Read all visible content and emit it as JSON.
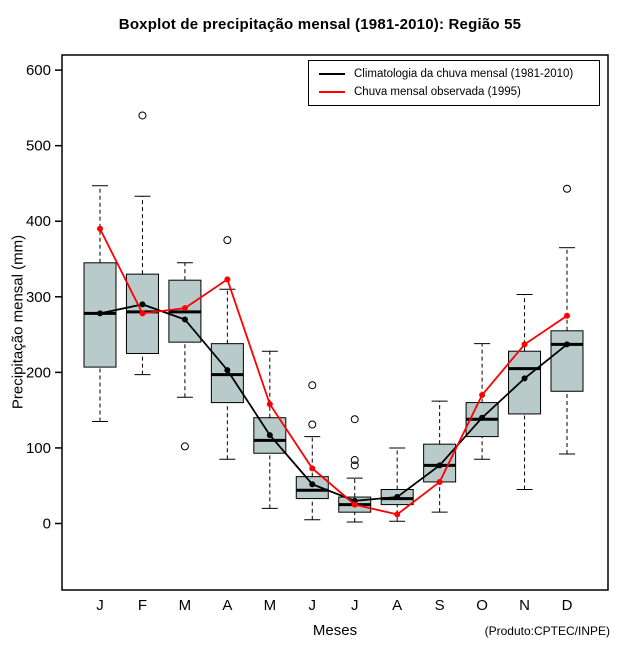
{
  "title": "Boxplot de precipitação mensal (1981-2010): Região 55",
  "chart_data": {
    "type": "boxplot",
    "categories": [
      "J",
      "F",
      "M",
      "A",
      "M",
      "J",
      "J",
      "A",
      "S",
      "O",
      "N",
      "D"
    ],
    "xlabel": "Meses",
    "ylabel": "Precipitação mensal (mm)",
    "footnote": "(Produto:CPTEC/INPE)",
    "ylim": [
      -88,
      620
    ],
    "yticks": [
      0,
      100,
      200,
      300,
      400,
      500,
      600
    ],
    "grid": false,
    "legend_position": "top-right",
    "box_fill": "#b8cbca",
    "boxes": [
      {
        "whislo": 135,
        "q1": 207,
        "med": 278,
        "q3": 345,
        "whishi": 447,
        "outliers": []
      },
      {
        "whislo": 197,
        "q1": 225,
        "med": 280,
        "q3": 330,
        "whishi": 433,
        "outliers": [
          540
        ]
      },
      {
        "whislo": 167,
        "q1": 240,
        "med": 280,
        "q3": 322,
        "whishi": 345,
        "outliers": [
          102
        ]
      },
      {
        "whislo": 85,
        "q1": 160,
        "med": 197,
        "q3": 238,
        "whishi": 310,
        "outliers": [
          375
        ]
      },
      {
        "whislo": 20,
        "q1": 93,
        "med": 110,
        "q3": 140,
        "whishi": 228,
        "outliers": []
      },
      {
        "whislo": 5,
        "q1": 33,
        "med": 44,
        "q3": 62,
        "whishi": 115,
        "outliers": [
          183,
          131
        ]
      },
      {
        "whislo": 2,
        "q1": 15,
        "med": 25,
        "q3": 35,
        "whishi": 60,
        "outliers": [
          138,
          84,
          77
        ]
      },
      {
        "whislo": 3,
        "q1": 25,
        "med": 33,
        "q3": 45,
        "whishi": 100,
        "outliers": []
      },
      {
        "whislo": 15,
        "q1": 55,
        "med": 77,
        "q3": 105,
        "whishi": 162,
        "outliers": []
      },
      {
        "whislo": 85,
        "q1": 115,
        "med": 138,
        "q3": 160,
        "whishi": 238,
        "outliers": []
      },
      {
        "whislo": 45,
        "q1": 145,
        "med": 205,
        "q3": 228,
        "whishi": 303,
        "outliers": []
      },
      {
        "whislo": 92,
        "q1": 175,
        "med": 237,
        "q3": 255,
        "whishi": 365,
        "outliers": [
          443
        ]
      }
    ],
    "series": [
      {
        "name": "Climatologia da chuva mensal (1981-2010)",
        "color": "#000000",
        "values": [
          278,
          290,
          270,
          203,
          117,
          52,
          30,
          35,
          77,
          140,
          192,
          237
        ]
      },
      {
        "name": "Chuva mensal observada (1995)",
        "color": "#ff0000",
        "values": [
          390,
          278,
          285,
          323,
          158,
          73,
          25,
          12,
          55,
          170,
          237,
          275
        ]
      }
    ]
  }
}
